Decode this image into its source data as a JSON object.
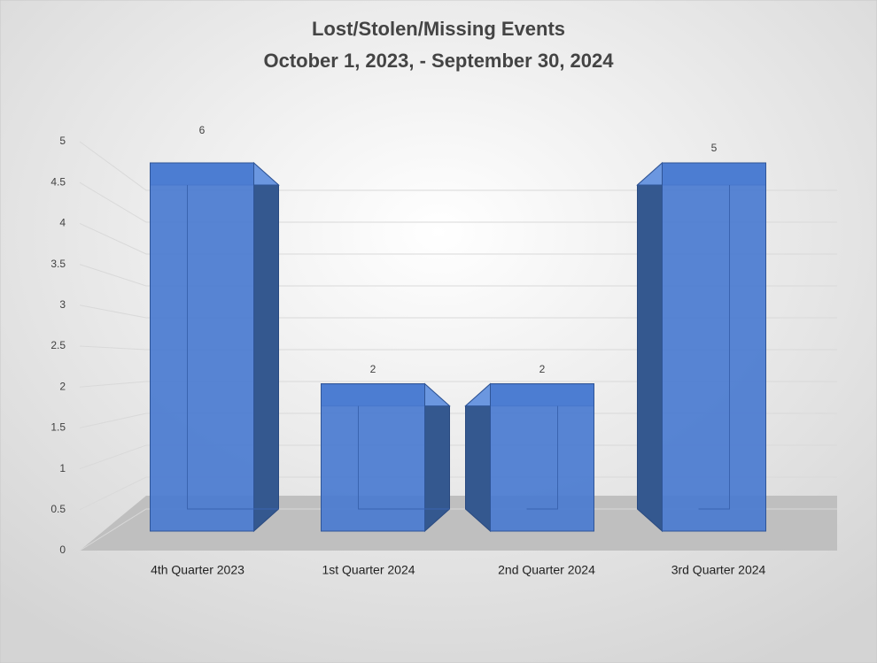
{
  "chart_data": {
    "type": "bar3d",
    "title": "Lost/Stolen/Missing Events",
    "subtitle": "October 1, 2023, - September 30, 2024",
    "categories": [
      "4th Quarter 2023",
      "1st Quarter 2024",
      "2nd Quarter 2024",
      "3rd Quarter 2024"
    ],
    "values": [
      6,
      2,
      2,
      5
    ],
    "color": "#4a7bd0",
    "ylim": [
      0,
      5
    ],
    "yticks": [
      0,
      0.5,
      1,
      1.5,
      2,
      2.5,
      3,
      3.5,
      4,
      4.5,
      5
    ],
    "grid": true
  }
}
